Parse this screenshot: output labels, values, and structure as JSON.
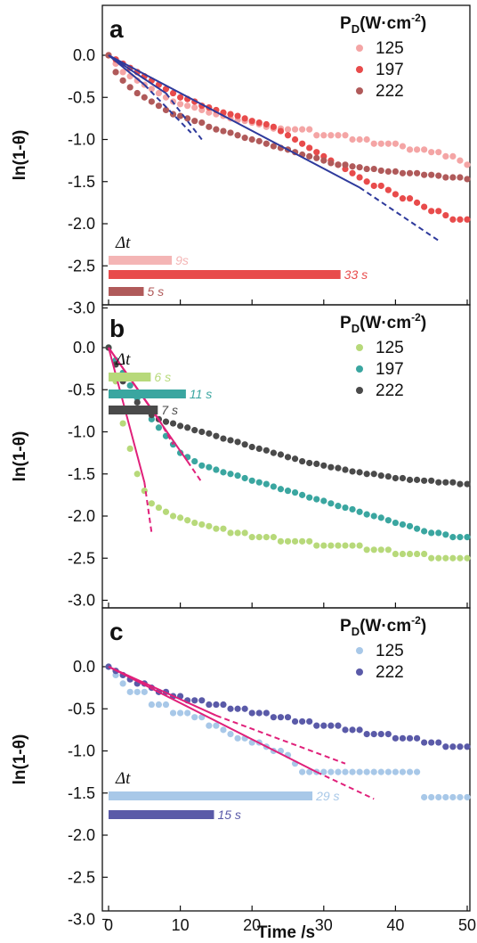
{
  "chart_data": [
    {
      "type": "scatter",
      "panel_label": "a",
      "ylabel": "ln(1-θ)",
      "xlabel": "",
      "xlim": [
        0,
        50
      ],
      "ylim": [
        -3.0,
        0.5
      ],
      "yticks": [
        "0.0",
        "-0.5",
        "-1.0",
        "-1.5",
        "-2.0",
        "-2.5",
        "-3.0"
      ],
      "legend_title": "P_D(W·cm⁻²)",
      "legend_position": "top-right",
      "series": [
        {
          "name": "125",
          "color": "#f4a5a5",
          "x": [
            0,
            1,
            2,
            3,
            4,
            5,
            6,
            7,
            8,
            9,
            10,
            11,
            12,
            13,
            14,
            15,
            16,
            17,
            18,
            19,
            20,
            21,
            22,
            23,
            24,
            25,
            26,
            27,
            28,
            29,
            30,
            31,
            32,
            33,
            34,
            35,
            36,
            37,
            38,
            39,
            40,
            41,
            42,
            43,
            44,
            45,
            46,
            47,
            48,
            49,
            50
          ],
          "y": [
            0,
            -0.1,
            -0.2,
            -0.25,
            -0.3,
            -0.35,
            -0.4,
            -0.45,
            -0.5,
            -0.55,
            -0.58,
            -0.6,
            -0.62,
            -0.65,
            -0.68,
            -0.7,
            -0.72,
            -0.75,
            -0.77,
            -0.78,
            -0.8,
            -0.82,
            -0.85,
            -0.87,
            -0.87,
            -0.88,
            -0.88,
            -0.88,
            -0.88,
            -0.95,
            -0.95,
            -0.95,
            -0.95,
            -0.95,
            -1.0,
            -1.0,
            -1.0,
            -1.05,
            -1.05,
            -1.05,
            -1.05,
            -1.08,
            -1.12,
            -1.12,
            -1.12,
            -1.15,
            -1.15,
            -1.2,
            -1.2,
            -1.25,
            -1.3
          ]
        },
        {
          "name": "197",
          "color": "#e84b4b",
          "x": [
            0,
            1,
            2,
            3,
            4,
            5,
            6,
            7,
            8,
            9,
            10,
            11,
            12,
            13,
            14,
            15,
            16,
            17,
            18,
            19,
            20,
            21,
            22,
            23,
            24,
            25,
            26,
            27,
            28,
            29,
            30,
            31,
            32,
            33,
            34,
            35,
            36,
            37,
            38,
            39,
            40,
            41,
            42,
            43,
            44,
            45,
            46,
            47,
            48,
            49,
            50
          ],
          "y": [
            0,
            -0.05,
            -0.1,
            -0.15,
            -0.2,
            -0.25,
            -0.3,
            -0.35,
            -0.4,
            -0.45,
            -0.5,
            -0.52,
            -0.55,
            -0.6,
            -0.62,
            -0.65,
            -0.68,
            -0.7,
            -0.72,
            -0.75,
            -0.78,
            -0.8,
            -0.82,
            -0.85,
            -0.9,
            -0.95,
            -1.0,
            -1.05,
            -1.1,
            -1.15,
            -1.2,
            -1.25,
            -1.3,
            -1.35,
            -1.4,
            -1.45,
            -1.5,
            -1.55,
            -1.55,
            -1.6,
            -1.65,
            -1.7,
            -1.7,
            -1.75,
            -1.8,
            -1.85,
            -1.85,
            -1.9,
            -1.95,
            -1.95,
            -1.95
          ]
        },
        {
          "name": "222",
          "color": "#b05a5a",
          "x": [
            0,
            1,
            2,
            3,
            4,
            5,
            6,
            7,
            8,
            9,
            10,
            11,
            12,
            13,
            14,
            15,
            16,
            17,
            18,
            19,
            20,
            21,
            22,
            23,
            24,
            25,
            26,
            27,
            28,
            29,
            30,
            31,
            32,
            33,
            34,
            35,
            36,
            37,
            38,
            39,
            40,
            41,
            42,
            43,
            44,
            45,
            46,
            47,
            48,
            49,
            50
          ],
          "y": [
            0,
            -0.2,
            -0.3,
            -0.38,
            -0.45,
            -0.5,
            -0.55,
            -0.6,
            -0.65,
            -0.7,
            -0.72,
            -0.75,
            -0.78,
            -0.8,
            -0.85,
            -0.88,
            -0.9,
            -0.92,
            -0.95,
            -0.98,
            -1.0,
            -1.02,
            -1.05,
            -1.08,
            -1.1,
            -1.12,
            -1.15,
            -1.18,
            -1.2,
            -1.22,
            -1.25,
            -1.28,
            -1.3,
            -1.3,
            -1.32,
            -1.33,
            -1.35,
            -1.35,
            -1.37,
            -1.38,
            -1.38,
            -1.4,
            -1.4,
            -1.4,
            -1.42,
            -1.42,
            -1.43,
            -1.45,
            -1.45,
            -1.45,
            -1.47
          ]
        }
      ],
      "fit_lines": [
        {
          "color": "#2e3a9c",
          "x": [
            0,
            35
          ],
          "y": [
            0,
            -1.57
          ],
          "dashed_to": [
            46,
            -2.2
          ]
        },
        {
          "color": "#2e3a9c",
          "x": [
            0,
            5
          ],
          "y": [
            0,
            -0.35
          ],
          "dashed_to": [
            11.5,
            -0.92
          ]
        },
        {
          "color": "#2e3a9c",
          "x": [
            0,
            8
          ],
          "y": [
            0,
            -0.45
          ],
          "dashed_to": [
            13,
            -1.0
          ]
        }
      ],
      "dt_label": "Δt",
      "dt_bars": [
        {
          "value": 9,
          "label": "9s",
          "color": "#f4b5b5"
        },
        {
          "value": 33,
          "label": "33 s",
          "color": "#e84b4b"
        },
        {
          "value": 5,
          "label": "5 s",
          "color": "#b05a5a"
        }
      ]
    },
    {
      "type": "scatter",
      "panel_label": "b",
      "ylabel": "ln(1-θ)",
      "xlabel": "",
      "xlim": [
        0,
        50
      ],
      "ylim": [
        -3.0,
        0.5
      ],
      "yticks": [
        "0.0",
        "-0.5",
        "-1.0",
        "-1.5",
        "-2.0",
        "-2.5",
        "-3.0"
      ],
      "legend_title": "P_D(W·cm⁻²)",
      "legend_position": "top-right",
      "series": [
        {
          "name": "125",
          "color": "#b7d97a",
          "x": [
            0,
            1,
            2,
            3,
            4,
            5,
            6,
            7,
            8,
            9,
            10,
            11,
            12,
            13,
            14,
            15,
            16,
            17,
            18,
            19,
            20,
            21,
            22,
            23,
            24,
            25,
            26,
            27,
            28,
            29,
            30,
            31,
            32,
            33,
            34,
            35,
            36,
            37,
            38,
            39,
            40,
            41,
            42,
            43,
            44,
            45,
            46,
            47,
            48,
            49,
            50
          ],
          "y": [
            0,
            -0.4,
            -0.9,
            -1.2,
            -1.5,
            -1.7,
            -1.85,
            -1.9,
            -1.95,
            -2.0,
            -2.02,
            -2.05,
            -2.08,
            -2.1,
            -2.12,
            -2.15,
            -2.15,
            -2.2,
            -2.2,
            -2.2,
            -2.25,
            -2.25,
            -2.25,
            -2.25,
            -2.3,
            -2.3,
            -2.3,
            -2.3,
            -2.3,
            -2.35,
            -2.35,
            -2.35,
            -2.35,
            -2.35,
            -2.35,
            -2.35,
            -2.4,
            -2.4,
            -2.4,
            -2.4,
            -2.45,
            -2.45,
            -2.45,
            -2.45,
            -2.45,
            -2.5,
            -2.5,
            -2.5,
            -2.5,
            -2.5,
            -2.5
          ]
        },
        {
          "name": "197",
          "color": "#3aa6a0",
          "x": [
            0,
            1,
            2,
            3,
            4,
            5,
            6,
            7,
            8,
            9,
            10,
            11,
            12,
            13,
            14,
            15,
            16,
            17,
            18,
            19,
            20,
            21,
            22,
            23,
            24,
            25,
            26,
            27,
            28,
            29,
            30,
            31,
            32,
            33,
            34,
            35,
            36,
            37,
            38,
            39,
            40,
            41,
            42,
            43,
            44,
            45,
            46,
            47,
            48,
            49,
            50
          ],
          "y": [
            0,
            -0.15,
            -0.3,
            -0.45,
            -0.6,
            -0.75,
            -0.85,
            -0.95,
            -1.05,
            -1.15,
            -1.25,
            -1.3,
            -1.35,
            -1.4,
            -1.42,
            -1.45,
            -1.48,
            -1.5,
            -1.52,
            -1.55,
            -1.58,
            -1.6,
            -1.62,
            -1.65,
            -1.68,
            -1.7,
            -1.72,
            -1.75,
            -1.78,
            -1.8,
            -1.82,
            -1.85,
            -1.88,
            -1.9,
            -1.92,
            -1.95,
            -1.98,
            -2.0,
            -2.02,
            -2.05,
            -2.08,
            -2.1,
            -2.12,
            -2.15,
            -2.18,
            -2.2,
            -2.2,
            -2.22,
            -2.25,
            -2.25,
            -2.25
          ]
        },
        {
          "name": "222",
          "color": "#4a4a4a",
          "x": [
            0,
            1,
            2,
            3,
            4,
            5,
            6,
            7,
            8,
            9,
            10,
            11,
            12,
            13,
            14,
            15,
            16,
            17,
            18,
            19,
            20,
            21,
            22,
            23,
            24,
            25,
            26,
            27,
            28,
            29,
            30,
            31,
            32,
            33,
            34,
            35,
            36,
            37,
            38,
            39,
            40,
            41,
            42,
            43,
            44,
            45,
            46,
            47,
            48,
            49,
            50
          ],
          "y": [
            0,
            -0.2,
            -0.4,
            -0.55,
            -0.65,
            -0.75,
            -0.8,
            -0.85,
            -0.88,
            -0.9,
            -0.93,
            -0.95,
            -0.98,
            -1.0,
            -1.02,
            -1.05,
            -1.08,
            -1.1,
            -1.12,
            -1.15,
            -1.18,
            -1.2,
            -1.22,
            -1.25,
            -1.27,
            -1.3,
            -1.32,
            -1.35,
            -1.37,
            -1.38,
            -1.4,
            -1.42,
            -1.43,
            -1.45,
            -1.47,
            -1.48,
            -1.5,
            -1.5,
            -1.52,
            -1.53,
            -1.55,
            -1.55,
            -1.57,
            -1.57,
            -1.58,
            -1.58,
            -1.6,
            -1.6,
            -1.6,
            -1.62,
            -1.62
          ]
        }
      ],
      "fit_lines": [
        {
          "color": "#e0207a",
          "x": [
            0,
            5
          ],
          "y": [
            0,
            -1.6
          ],
          "dashed_to": [
            6,
            -2.2
          ]
        },
        {
          "color": "#e0207a",
          "x": [
            0,
            11
          ],
          "y": [
            0,
            -1.35
          ],
          "dashed_to": [
            13,
            -1.6
          ]
        },
        {
          "color": "#e0207a",
          "x": [
            0,
            7
          ],
          "y": [
            0,
            -0.85
          ],
          "dashed_to": [
            9,
            -1.15
          ]
        }
      ],
      "dt_label": "Δt",
      "dt_bars": [
        {
          "value": 6,
          "label": "6 s",
          "color": "#b7d97a"
        },
        {
          "value": 11,
          "label": "11 s",
          "color": "#3aa6a0"
        },
        {
          "value": 7,
          "label": "7 s",
          "color": "#4a4a4a"
        }
      ]
    },
    {
      "type": "scatter",
      "panel_label": "c",
      "ylabel": "ln(1-θ)",
      "xlabel": "Time /s",
      "xlim": [
        0,
        50
      ],
      "xticks": [
        "0",
        "10",
        "20",
        "30",
        "40",
        "50"
      ],
      "ylim": [
        -3.0,
        0.5
      ],
      "yticks": [
        "0.0",
        "-0.5",
        "-1.0",
        "-1.5",
        "-2.0",
        "-2.5",
        "-3.0"
      ],
      "legend_title": "P_D(W·cm⁻²)",
      "legend_position": "top-right",
      "series": [
        {
          "name": "125",
          "color": "#a8c8e8",
          "x": [
            0,
            1,
            2,
            3,
            4,
            5,
            6,
            7,
            8,
            9,
            10,
            11,
            12,
            13,
            14,
            15,
            16,
            17,
            18,
            19,
            20,
            21,
            22,
            23,
            24,
            25,
            26,
            27,
            28,
            29,
            30,
            31,
            32,
            33,
            34,
            35,
            36,
            37,
            38,
            39,
            40,
            41,
            42,
            43,
            44,
            45,
            46,
            47,
            48,
            49,
            50
          ],
          "y": [
            0,
            -0.1,
            -0.2,
            -0.3,
            -0.3,
            -0.3,
            -0.45,
            -0.45,
            -0.45,
            -0.55,
            -0.55,
            -0.55,
            -0.6,
            -0.6,
            -0.7,
            -0.7,
            -0.75,
            -0.8,
            -0.85,
            -0.85,
            -0.9,
            -0.9,
            -0.95,
            -1.0,
            -1.0,
            -1.05,
            -1.15,
            -1.25,
            -1.25,
            -1.25,
            -1.25,
            -1.25,
            -1.25,
            -1.25,
            -1.25,
            -1.25,
            -1.25,
            -1.25,
            -1.25,
            -1.25,
            -1.25,
            -1.25,
            -1.25,
            -1.25,
            -1.55,
            -1.55,
            -1.55,
            -1.55,
            -1.55,
            -1.55,
            -1.55
          ]
        },
        {
          "name": "222",
          "color": "#5a5aa8",
          "x": [
            0,
            1,
            2,
            3,
            4,
            5,
            6,
            7,
            8,
            9,
            10,
            11,
            12,
            13,
            14,
            15,
            16,
            17,
            18,
            19,
            20,
            21,
            22,
            23,
            24,
            25,
            26,
            27,
            28,
            29,
            30,
            31,
            32,
            33,
            34,
            35,
            36,
            37,
            38,
            39,
            40,
            41,
            42,
            43,
            44,
            45,
            46,
            47,
            48,
            49,
            50
          ],
          "y": [
            0,
            -0.05,
            -0.1,
            -0.15,
            -0.2,
            -0.2,
            -0.25,
            -0.3,
            -0.3,
            -0.35,
            -0.35,
            -0.4,
            -0.4,
            -0.4,
            -0.45,
            -0.45,
            -0.45,
            -0.5,
            -0.5,
            -0.5,
            -0.55,
            -0.55,
            -0.55,
            -0.6,
            -0.6,
            -0.6,
            -0.65,
            -0.65,
            -0.65,
            -0.7,
            -0.7,
            -0.7,
            -0.7,
            -0.75,
            -0.75,
            -0.75,
            -0.8,
            -0.8,
            -0.8,
            -0.8,
            -0.85,
            -0.85,
            -0.85,
            -0.85,
            -0.9,
            -0.9,
            -0.9,
            -0.95,
            -0.95,
            -0.95,
            -0.95
          ]
        }
      ],
      "fit_lines": [
        {
          "color": "#e0207a",
          "x": [
            0,
            29
          ],
          "y": [
            0,
            -1.25
          ],
          "dashed_to": [
            37,
            -1.57
          ]
        },
        {
          "color": "#e0207a",
          "x": [
            0,
            15
          ],
          "y": [
            0,
            -0.58
          ],
          "dashed_to": [
            33,
            -1.15
          ]
        }
      ],
      "dt_label": "Δt",
      "dt_bars": [
        {
          "value": 29,
          "label": "29 s",
          "color": "#a8c8e8"
        },
        {
          "value": 15,
          "label": "15 s",
          "color": "#5a5aa8"
        }
      ]
    }
  ]
}
